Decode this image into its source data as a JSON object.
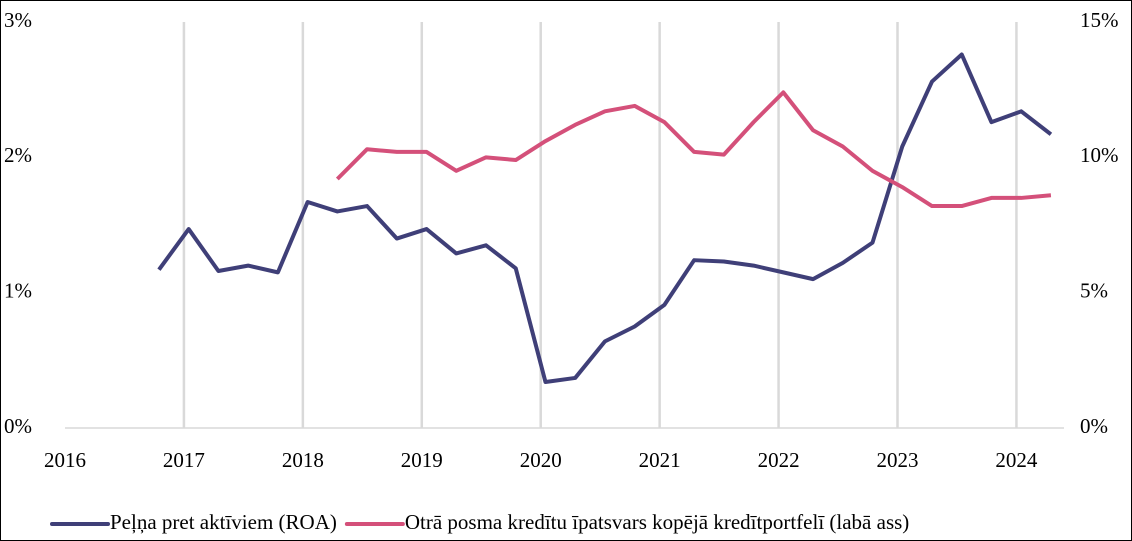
{
  "chart_data": {
    "type": "line",
    "x": [
      2016.79,
      2017.04,
      2017.29,
      2017.54,
      2017.79,
      2018.04,
      2018.29,
      2018.54,
      2018.79,
      2019.04,
      2019.29,
      2019.54,
      2019.79,
      2020.04,
      2020.29,
      2020.54,
      2020.79,
      2021.04,
      2021.29,
      2021.54,
      2021.79,
      2022.04,
      2022.29,
      2022.54,
      2022.79,
      2023.04,
      2023.29,
      2023.54,
      2023.79,
      2024.04,
      2024.29
    ],
    "series": [
      {
        "name": "Peļņa pret aktīviem (ROA)",
        "color": "#3f3f78",
        "values": [
          1.17,
          1.47,
          1.16,
          1.2,
          1.15,
          1.67,
          1.6,
          1.64,
          1.4,
          1.47,
          1.29,
          1.35,
          1.18,
          0.34,
          0.37,
          0.64,
          0.75,
          0.91,
          1.24,
          1.23,
          1.2,
          1.15,
          1.1,
          1.22,
          1.37,
          2.08,
          2.56,
          2.76,
          2.26,
          2.34,
          2.17
        ]
      },
      {
        "name": "Otrā posma kredītu īpatsvars kopējā kredītportfelī (labā ass)",
        "color": "#d4507a",
        "axis": "y2",
        "values": [
          null,
          null,
          null,
          null,
          null,
          null,
          9.2,
          10.3,
          10.2,
          10.2,
          9.5,
          10.0,
          9.9,
          10.6,
          11.2,
          11.7,
          11.9,
          11.3,
          10.2,
          10.1,
          11.3,
          12.4,
          11.0,
          10.4,
          9.5,
          8.9,
          8.2,
          8.2,
          8.5,
          8.5,
          8.6
        ]
      }
    ],
    "xlim": [
      2016,
      2024.4
    ],
    "xticks": [
      2016,
      2017,
      2018,
      2019,
      2020,
      2021,
      2022,
      2023,
      2024
    ],
    "ylim": [
      0,
      3
    ],
    "yticks": [
      {
        "value": 0,
        "label": "0%"
      },
      {
        "value": 1,
        "label": "1%"
      },
      {
        "value": 2,
        "label": "2%"
      },
      {
        "value": 3,
        "label": "3%"
      }
    ],
    "y2lim": [
      0,
      15
    ],
    "y2ticks": [
      {
        "value": 0,
        "label": "0%"
      },
      {
        "value": 5,
        "label": "5%"
      },
      {
        "value": 10,
        "label": "10%"
      },
      {
        "value": 15,
        "label": "15%"
      }
    ],
    "grid": true,
    "legend": "bottom"
  }
}
